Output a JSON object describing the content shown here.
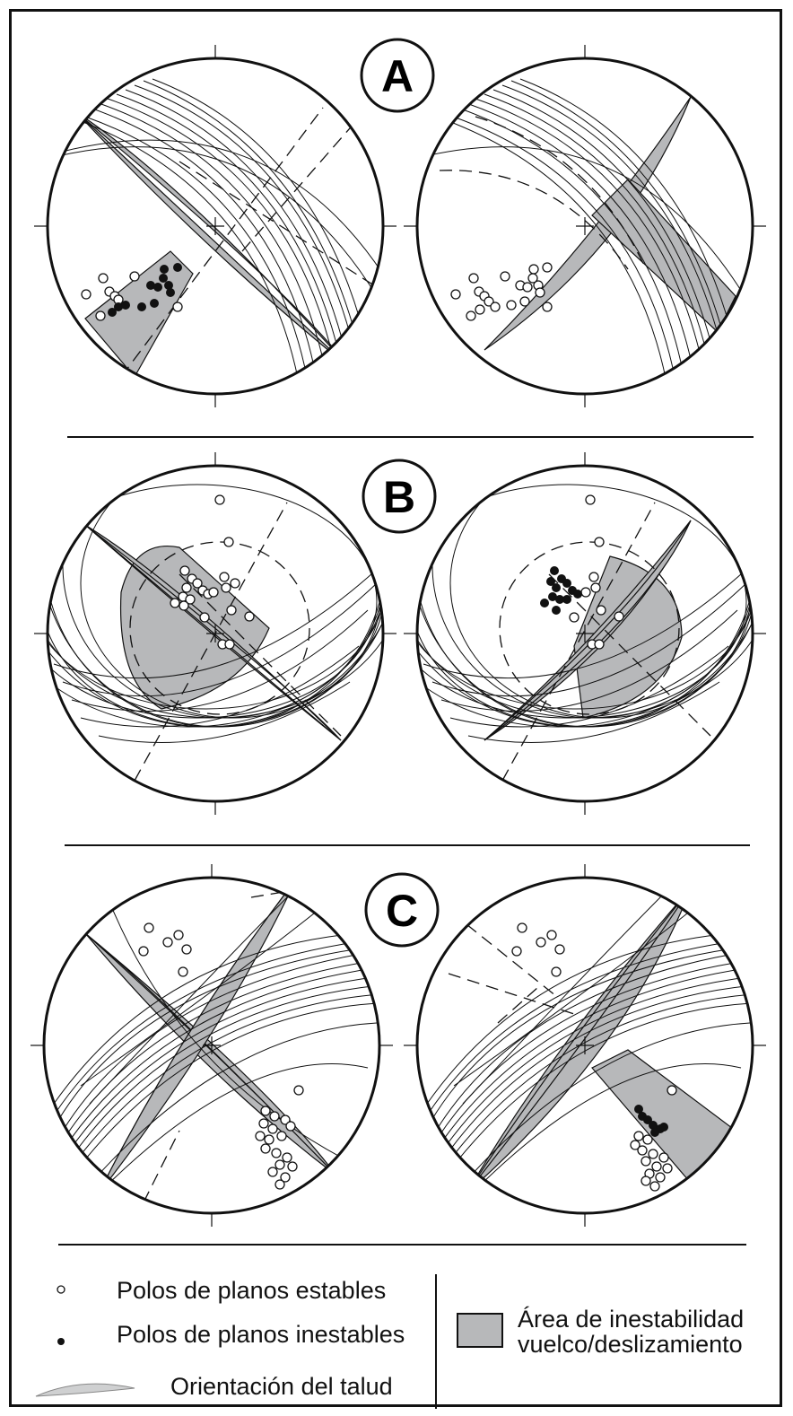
{
  "panels": [
    {
      "label": "A"
    },
    {
      "label": "B"
    },
    {
      "label": "C"
    }
  ],
  "legend": {
    "stable_poles": "Polos de planos estables",
    "unstable_poles": "Polos de planos inestables",
    "slope_orientation": "Orientación del talud",
    "instability_line1": "Área de inestabilidad",
    "instability_line2": "vuelco/deslizamiento"
  },
  "colors": {
    "shade": "#b7b8ba",
    "line": "#111111",
    "slope_fill": "#cfd0d1"
  }
}
